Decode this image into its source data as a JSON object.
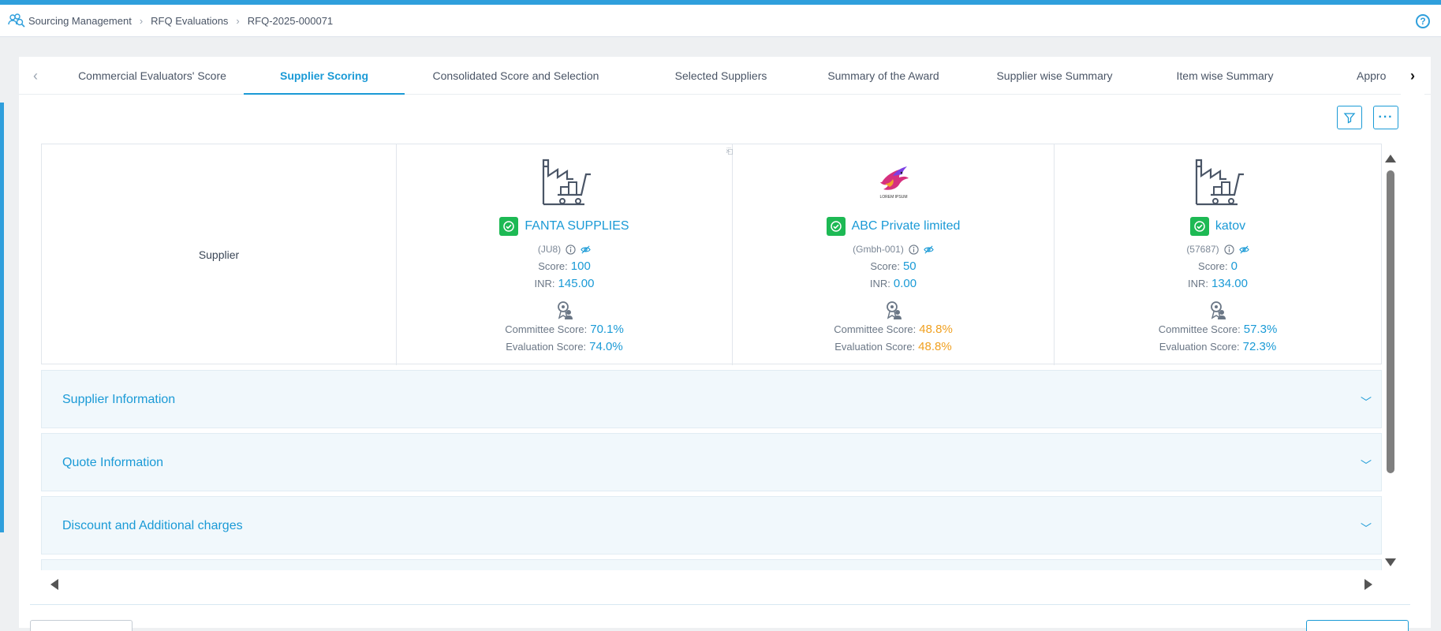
{
  "breadcrumb": {
    "items": [
      "Sourcing Management",
      "RFQ Evaluations",
      "RFQ-2025-000071"
    ]
  },
  "help_icon": "?",
  "tabs": [
    {
      "label": "Commercial Evaluators' Score",
      "active": false
    },
    {
      "label": "Supplier Scoring",
      "active": true
    },
    {
      "label": "Consolidated Score and Selection",
      "active": false
    },
    {
      "label": "Selected Suppliers",
      "active": false
    },
    {
      "label": "Summary of the Award",
      "active": false
    },
    {
      "label": "Supplier wise Summary",
      "active": false
    },
    {
      "label": "Item wise Summary",
      "active": false
    },
    {
      "label": "Appro",
      "active": false
    }
  ],
  "grid": {
    "row_label": "Supplier",
    "score_label": "Score:",
    "currency_label": "INR:",
    "committee_label": "Committee Score:",
    "evaluation_label": "Evaluation Score:",
    "suppliers": [
      {
        "name": "FANTA SUPPLIES",
        "code": "(JU8)",
        "score": "100",
        "amount": "145.00",
        "committee": "70.1%",
        "evaluation": "74.0%",
        "committee_color": "#1a9ad6",
        "evaluation_color": "#1a9ad6",
        "logo": "factory-icon"
      },
      {
        "name": "ABC Private limited",
        "code": "(Gmbh-001)",
        "score": "50",
        "amount": "0.00",
        "committee": "48.8%",
        "evaluation": "48.8%",
        "committee_color": "#f0a020",
        "evaluation_color": "#f0a020",
        "logo": "bird-logo",
        "logo_text": "LOREM IPSUM"
      },
      {
        "name": "katov",
        "code": "(57687)",
        "score": "0",
        "amount": "134.00",
        "committee": "57.3%",
        "evaluation": "72.3%",
        "committee_color": "#1a9ad6",
        "evaluation_color": "#1a9ad6",
        "logo": "factory-icon"
      }
    ]
  },
  "sections": [
    {
      "title": "Supplier Information"
    },
    {
      "title": "Quote Information"
    },
    {
      "title": "Discount and Additional charges"
    }
  ],
  "colors": {
    "accent": "#1a9ad6",
    "success": "#1db954",
    "warning": "#f0a020"
  }
}
